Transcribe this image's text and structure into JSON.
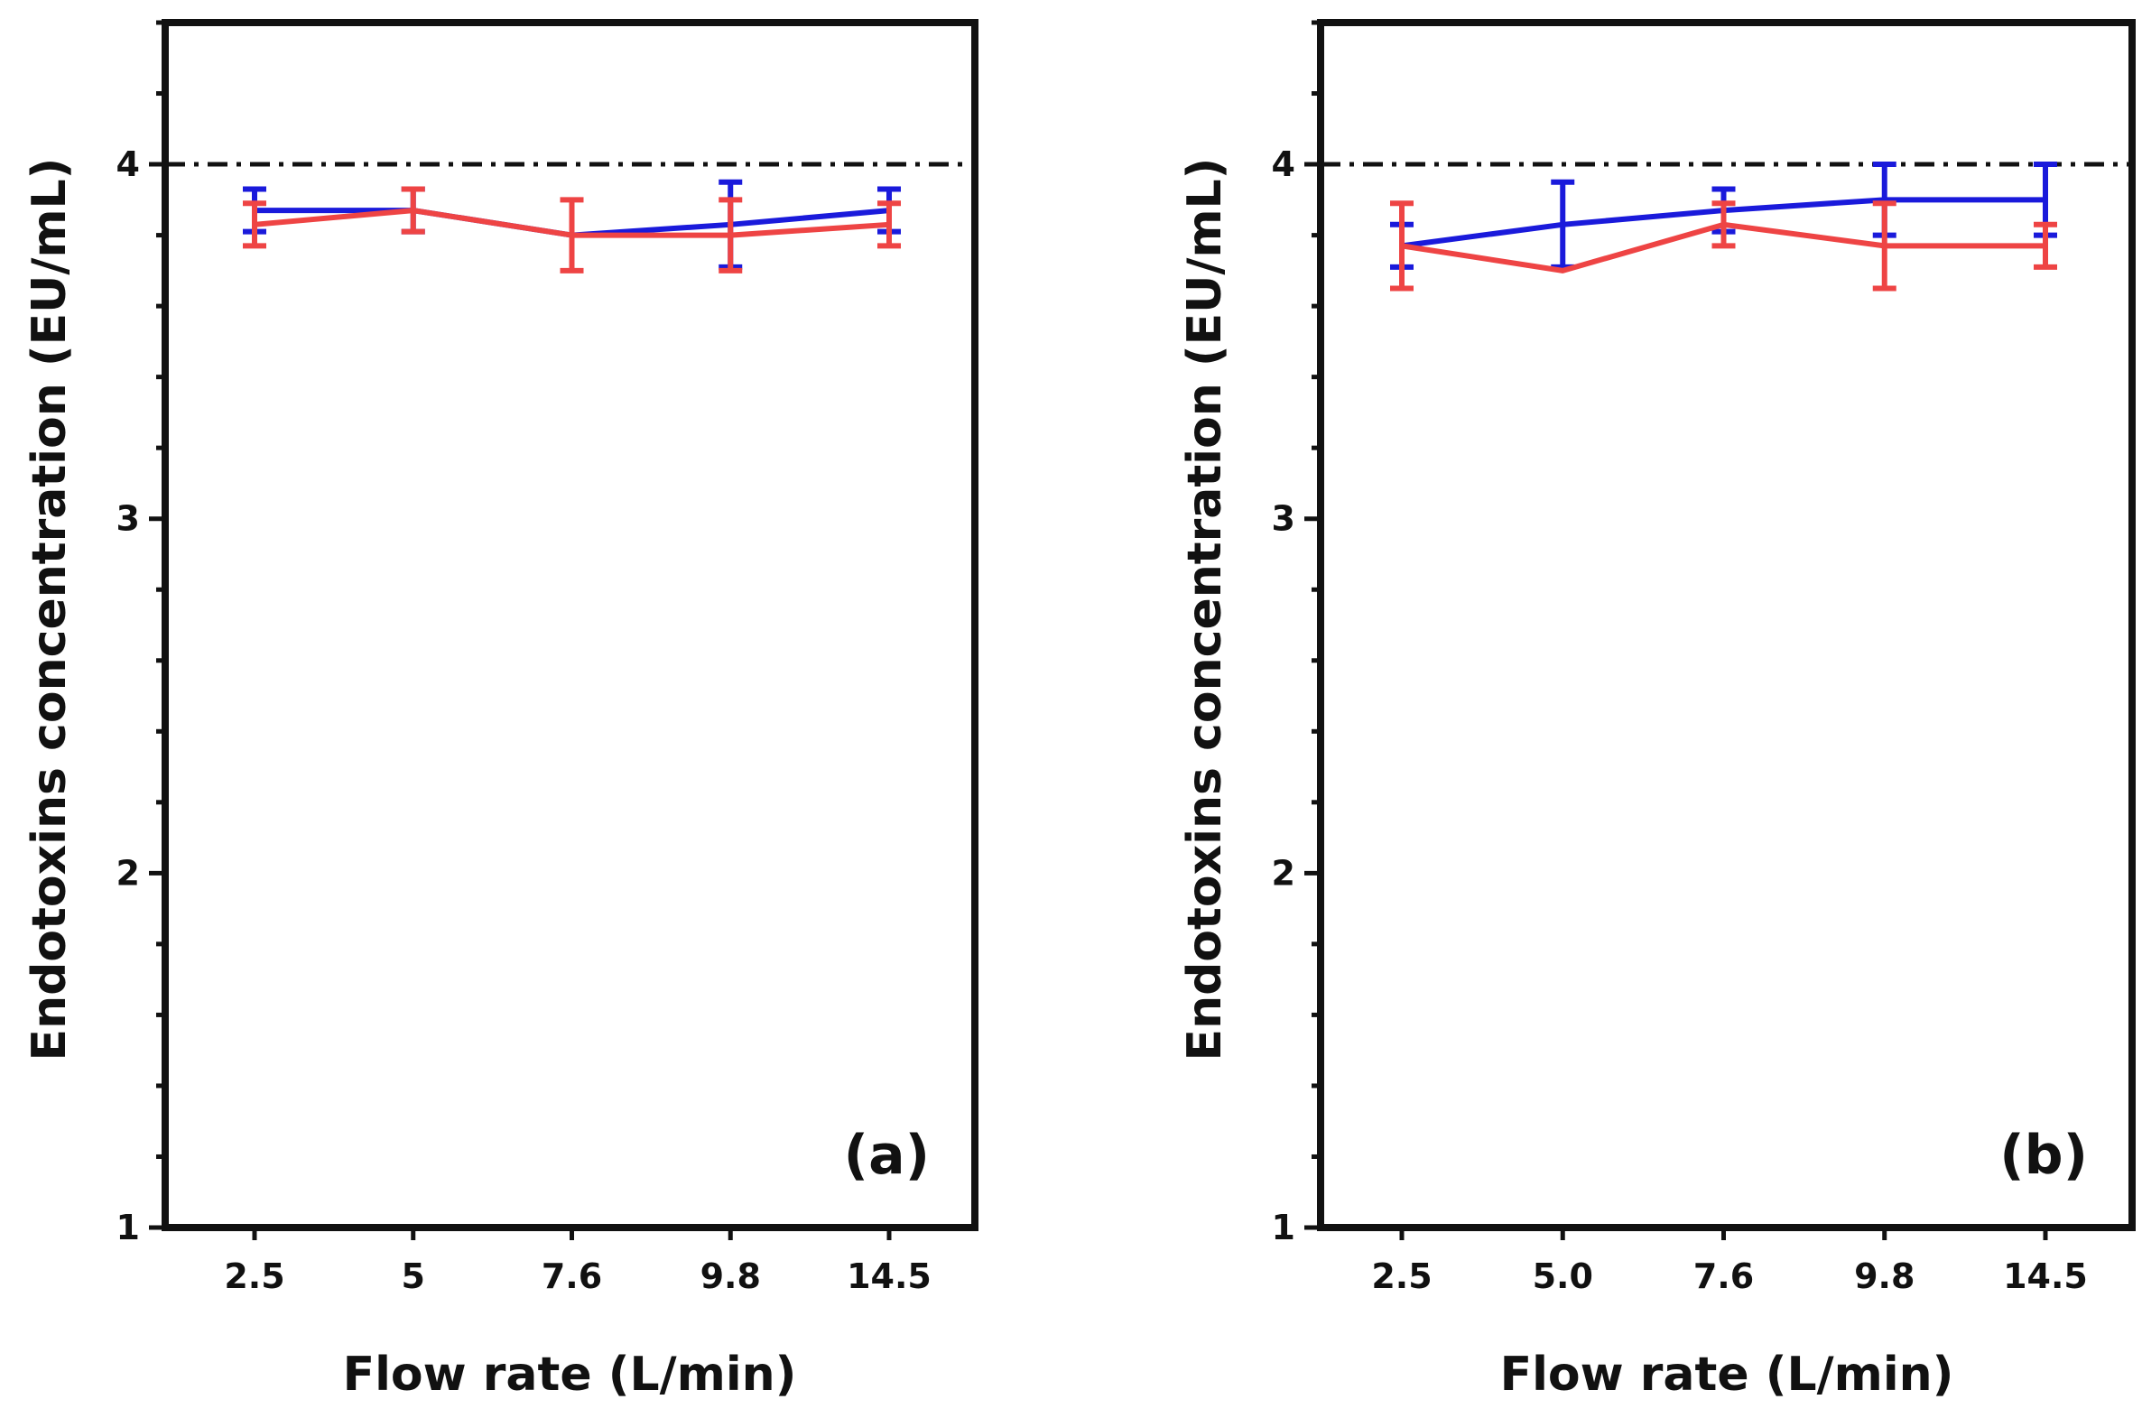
{
  "chart_data": [
    {
      "type": "line",
      "panel_label": "(a)",
      "xlabel": "Flow rate (L/min)",
      "ylabel": "Endotoxins concentration (EU/mL)",
      "categories": [
        "2.5",
        "5",
        "7.6",
        "9.8",
        "14.5"
      ],
      "ylim": [
        1,
        4.4
      ],
      "yticks": [
        "1",
        "2",
        "3",
        "4"
      ],
      "reference_line": {
        "y": 4,
        "style": "dash-dot",
        "color": "#111111"
      },
      "series": [
        {
          "name": "blue series",
          "color": "#1a1adb",
          "values": [
            3.87,
            3.87,
            3.8,
            3.83,
            3.87
          ],
          "errors": [
            0.06,
            0.06,
            0.0,
            0.12,
            0.06
          ]
        },
        {
          "name": "red series",
          "color": "#ee4444",
          "values": [
            3.83,
            3.87,
            3.8,
            3.8,
            3.83
          ],
          "errors": [
            0.06,
            0.06,
            0.1,
            0.1,
            0.06
          ]
        }
      ]
    },
    {
      "type": "line",
      "panel_label": "(b)",
      "xlabel": "Flow rate (L/min)",
      "ylabel": "Endotoxins concentration (EU/mL)",
      "categories": [
        "2.5",
        "5.0",
        "7.6",
        "9.8",
        "14.5"
      ],
      "ylim": [
        1,
        4.4
      ],
      "yticks": [
        "1",
        "2",
        "3",
        "4"
      ],
      "reference_line": {
        "y": 4,
        "style": "dash-dot",
        "color": "#111111"
      },
      "series": [
        {
          "name": "blue series",
          "color": "#1a1adb",
          "values": [
            3.77,
            3.83,
            3.87,
            3.9,
            3.9
          ],
          "errors": [
            0.06,
            0.12,
            0.06,
            0.1,
            0.1
          ]
        },
        {
          "name": "red series",
          "color": "#ee4444",
          "values": [
            3.77,
            3.7,
            3.83,
            3.77,
            3.77
          ],
          "errors": [
            0.12,
            0.0,
            0.06,
            0.12,
            0.06
          ]
        }
      ]
    }
  ]
}
